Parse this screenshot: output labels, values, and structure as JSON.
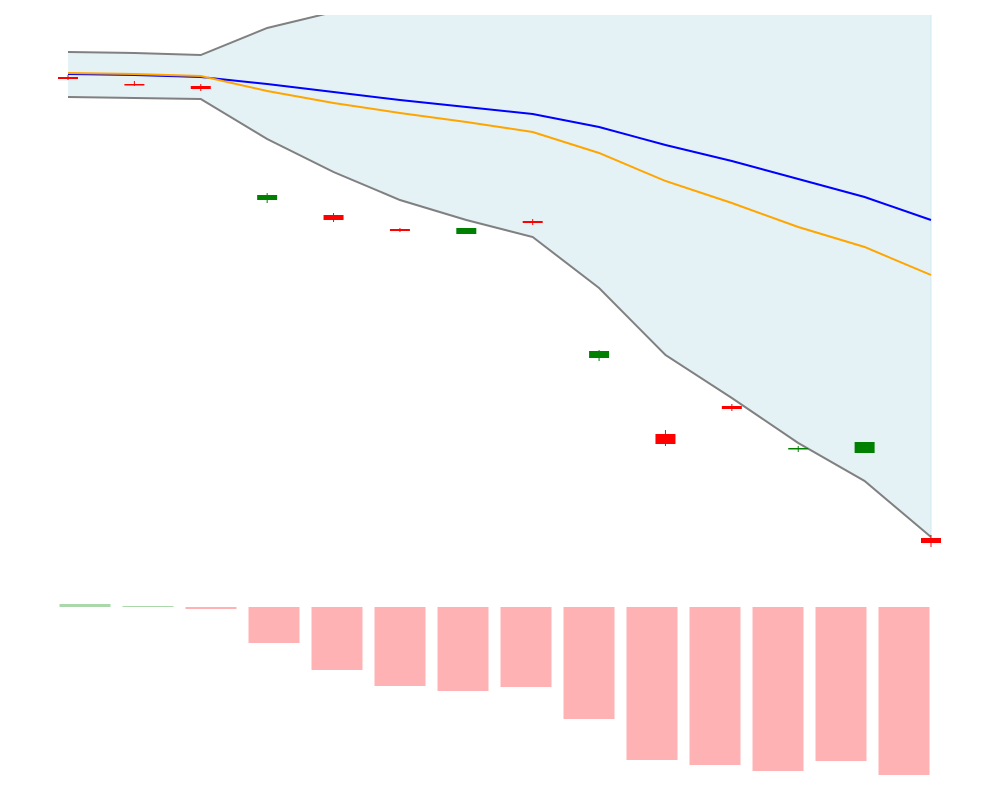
{
  "chart_data": [
    {
      "type": "candlestick",
      "categories": [
        null,
        null,
        null,
        null,
        null,
        null,
        null,
        null,
        null,
        null,
        null,
        null,
        null,
        null
      ],
      "open": [
        96.6,
        95.2,
        94.8,
        72,
        69,
        66.2,
        65.2,
        67.8,
        40.4,
        25.2,
        30.8,
        22.2,
        21.4,
        4.4
      ],
      "close": [
        96.2,
        95,
        94.2,
        73,
        68,
        65.8,
        66.4,
        67.4,
        41.8,
        23.2,
        30.2,
        22.4,
        23.6,
        3.4
      ],
      "high": [
        97,
        95.8,
        95.2,
        73.4,
        69.4,
        66.4,
        66.4,
        68.2,
        42,
        26,
        31.2,
        22.8,
        23.6,
        5
      ],
      "low": [
        96,
        94.8,
        93.8,
        71.4,
        67.6,
        65.6,
        65.2,
        67,
        39.8,
        22.8,
        29.8,
        21.6,
        21.4,
        2.6
      ],
      "up_color": "#008000",
      "down_color": "#ff0000",
      "bands": {
        "upper": [
          101.6,
          101.4,
          101,
          106.4,
          109.6,
          116,
          120,
          122,
          132,
          142,
          146,
          152,
          158,
          172
        ],
        "lower": [
          92.6,
          92.4,
          92.2,
          84.2,
          77.6,
          72,
          68,
          64.6,
          54.4,
          41,
          32.4,
          23.4,
          15.8,
          4.6
        ],
        "color": "#808080",
        "fill": "#e4f2f6"
      },
      "series": [
        {
          "color": "#0000ff",
          "values": [
            97.2,
            97,
            96.6,
            95.2,
            93.6,
            92,
            90.6,
            89.2,
            86.6,
            83,
            79.8,
            76.2,
            72.6,
            68
          ]
        },
        {
          "color": "#ffa500",
          "values": [
            97.4,
            97.2,
            96.8,
            93.8,
            91.4,
            89.4,
            87.6,
            85.6,
            81.4,
            75.8,
            71.4,
            66.6,
            62.6,
            57
          ]
        }
      ],
      "ylim": [
        0,
        109
      ]
    },
    {
      "type": "bar",
      "categories": [
        null,
        null,
        null,
        null,
        null,
        null,
        null,
        null,
        null,
        null,
        null,
        null,
        null,
        null
      ],
      "values": [
        3,
        1,
        -2,
        -36,
        -63,
        -79,
        -84,
        -80,
        -112,
        -153,
        -158,
        -164,
        -154,
        -168
      ],
      "up_color": "#aad8aa",
      "down_color": "#ffb2b4",
      "ylim": [
        -170,
        10
      ]
    }
  ]
}
